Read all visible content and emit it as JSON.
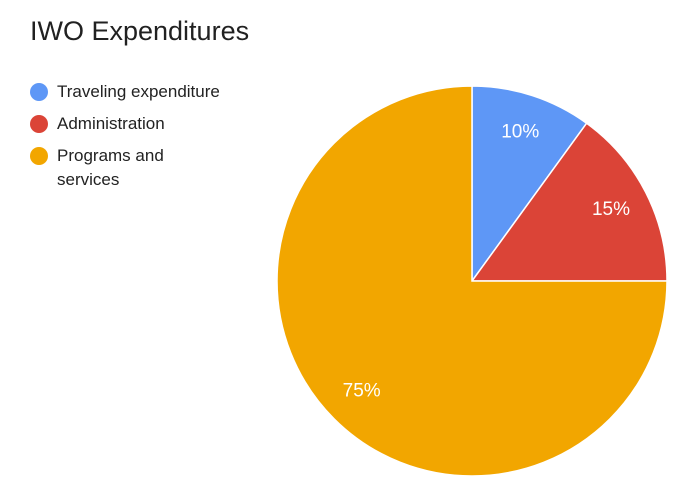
{
  "chart_data": {
    "type": "pie",
    "title": "IWO Expenditures",
    "categories": [
      "Traveling expenditure",
      "Administration",
      "Programs and services"
    ],
    "values": [
      10,
      15,
      75
    ],
    "value_labels": [
      "10%",
      "15%",
      "75%"
    ],
    "colors": [
      "#5e97f6",
      "#db4437",
      "#f2a600"
    ],
    "legend": "left"
  }
}
